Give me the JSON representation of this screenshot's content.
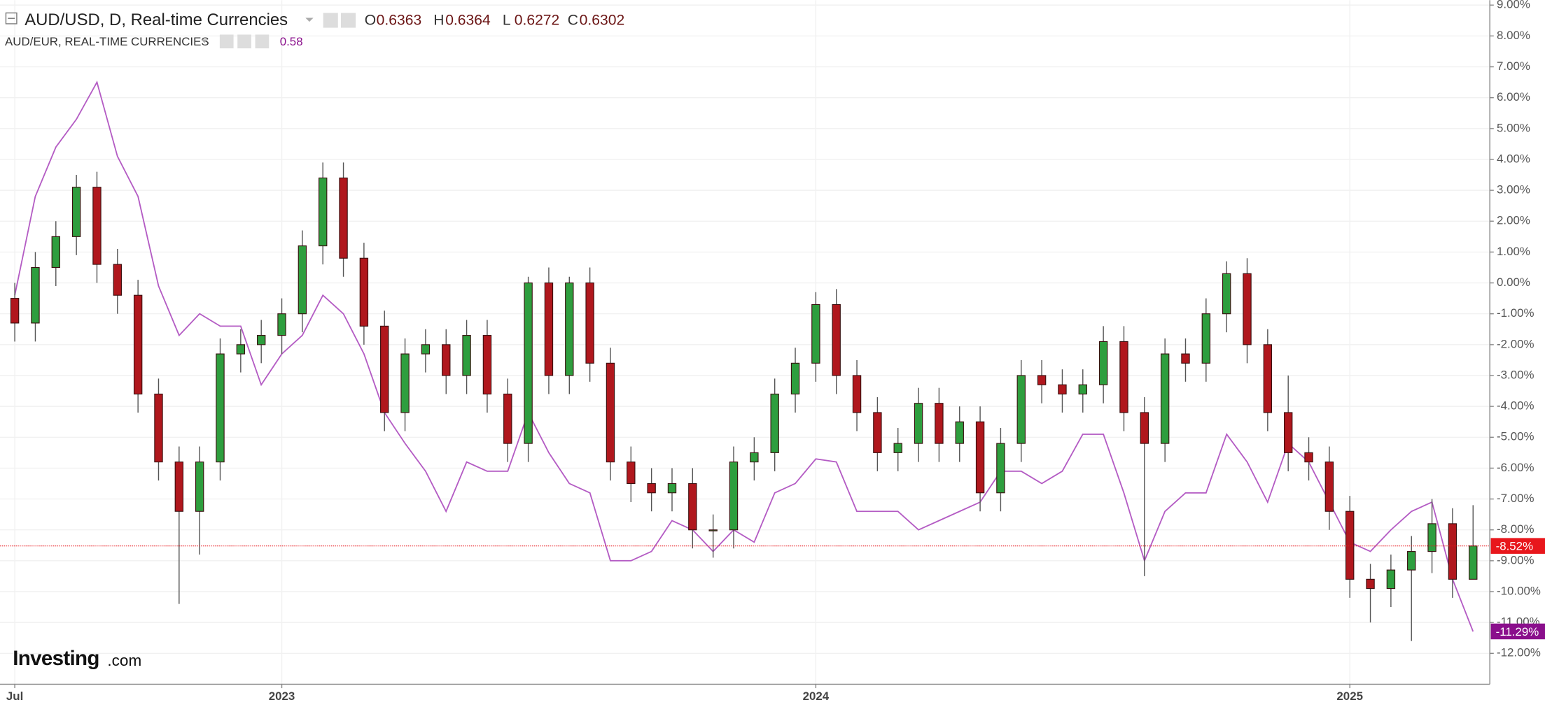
{
  "chart_data": {
    "type": "candlestick",
    "logo": "Investing",
    "logo_suffix": ".com",
    "ohlc_header": [
      {
        "label": "O",
        "value": 0.6363
      },
      {
        "label": "H",
        "value": 0.6364
      },
      {
        "label": "L",
        "value": 0.6272
      },
      {
        "label": "C",
        "value": 0.6302
      }
    ],
    "compare_value": 0.58,
    "categories": [
      "Jul",
      null,
      null,
      null,
      null,
      null,
      null,
      null,
      null,
      null,
      null,
      null,
      null,
      "2023",
      null,
      null,
      null,
      null,
      null,
      null,
      null,
      null,
      null,
      null,
      null,
      null,
      null,
      null,
      null,
      null,
      null,
      null,
      null,
      null,
      null,
      null,
      null,
      null,
      null,
      "2024",
      null,
      null,
      null,
      null,
      null,
      null,
      null,
      null,
      null,
      null,
      null,
      null,
      null,
      null,
      null,
      null,
      null,
      null,
      null,
      null,
      null,
      null,
      null,
      null,
      null,
      "2025",
      null,
      null,
      null,
      null,
      null,
      null
    ],
    "series": [
      {
        "name": "AUD/USD, D, Real-time Currencies",
        "up_color": "#2e9e3e",
        "down_color": "#b0171d",
        "outline_color": "#3a1010",
        "open": [
          -0.5,
          -1.3,
          0.5,
          1.5,
          3.1,
          0.6,
          -0.4,
          -3.6,
          -5.8,
          -7.4,
          -5.8,
          -2.3,
          -2,
          -1.7,
          -1,
          1.2,
          3.4,
          0.8,
          -1.4,
          -4.2,
          -2.3,
          -2,
          -3,
          -1.7,
          -3.6,
          -5.2,
          0,
          -3,
          0,
          -2.6,
          -5.8,
          -6.5,
          -6.8,
          -6.5,
          -8,
          -8,
          -5.8,
          -5.5,
          -3.6,
          -2.6,
          -0.7,
          -3,
          -4.2,
          -5.5,
          -5.2,
          -3.9,
          -5.2,
          -4.5,
          -6.8,
          -5.2,
          -3,
          -3.3,
          -3.6,
          -3.3,
          -1.9,
          -4.2,
          -5.2,
          -2.3,
          -2.6,
          -1,
          0.3,
          -2,
          -4.2,
          -5.5,
          -5.8,
          -7.4,
          -9.6,
          -9.9,
          -9.3,
          -8.7,
          -7.8,
          -9.6
        ],
        "high": [
          0,
          1,
          2,
          3.5,
          3.6,
          1.1,
          0.1,
          -3.1,
          -5.3,
          -5.3,
          -1.8,
          -1.5,
          -1.2,
          -0.5,
          1.7,
          3.9,
          3.9,
          1.3,
          -0.9,
          -1.8,
          -1.5,
          -1.5,
          -1.2,
          -1.2,
          -3.1,
          0.2,
          0.5,
          0.2,
          0.5,
          -2.1,
          -5.3,
          -6,
          -6,
          -6,
          -7.5,
          -5.3,
          -5,
          -3.1,
          -2.1,
          -0.3,
          -0.2,
          -2.5,
          -3.7,
          -4.7,
          -3.4,
          -3.4,
          -4,
          -4,
          -4.7,
          -2.5,
          -2.5,
          -2.8,
          -2.8,
          -1.4,
          -1.4,
          -3.7,
          -1.8,
          -1.8,
          -0.5,
          0.7,
          0.8,
          -1.5,
          -3,
          -5,
          -5.3,
          -6.9,
          -9.1,
          -8.8,
          -8.2,
          -7,
          -7.3,
          -7.2
        ],
        "low": [
          -1.9,
          -1.9,
          -0.1,
          0.9,
          0,
          -1,
          -4.2,
          -6.4,
          -10.4,
          -8.8,
          -6.4,
          -2.9,
          -2.6,
          -2.3,
          -1.6,
          0.6,
          0.2,
          -2,
          -4.8,
          -4.8,
          -2.9,
          -3.6,
          -3.6,
          -4.2,
          -5.8,
          -5.8,
          -3.6,
          -3.6,
          -3.2,
          -6.4,
          -7.1,
          -7.4,
          -7.4,
          -8.6,
          -8.9,
          -8.6,
          -6.4,
          -6.1,
          -4.2,
          -3.2,
          -3.6,
          -4.8,
          -6.1,
          -6.1,
          -5.8,
          -5.8,
          -5.8,
          -7.4,
          -7.4,
          -5.8,
          -3.9,
          -4.2,
          -4.2,
          -3.9,
          -4.8,
          -9.5,
          -5.8,
          -3.2,
          -3.2,
          -1.6,
          -2.6,
          -4.8,
          -6.1,
          -6.4,
          -8,
          -10.2,
          -11,
          -10.5,
          -11.6,
          -9.4,
          -10.2,
          -9.3
        ],
        "values": [
          -1.3,
          0.5,
          1.5,
          3.1,
          0.6,
          -0.4,
          -3.6,
          -5.8,
          -7.4,
          -5.8,
          -2.3,
          -2,
          -1.7,
          -1,
          1.2,
          3.4,
          0.8,
          -1.4,
          -4.2,
          -2.3,
          -2,
          -3,
          -1.7,
          -3.6,
          -5.2,
          0,
          -3,
          0,
          -2.6,
          -5.8,
          -6.5,
          -6.8,
          -6.5,
          -8,
          -8,
          -5.8,
          -5.5,
          -3.6,
          -2.6,
          -0.7,
          -3,
          -4.2,
          -5.5,
          -5.2,
          -3.9,
          -5.2,
          -4.5,
          -6.8,
          -5.2,
          -3,
          -3.3,
          -3.6,
          -3.3,
          -1.9,
          -4.2,
          -5.2,
          -2.3,
          -2.6,
          -1,
          0.3,
          -2,
          -4.2,
          -5.5,
          -5.8,
          -7.4,
          -9.6,
          -9.9,
          -9.3,
          -8.7,
          -7.8,
          -9.6,
          -8.52
        ],
        "value_labels": [
          null,
          null,
          null,
          null,
          null,
          null,
          null,
          null,
          null,
          null,
          null,
          null,
          null,
          null,
          null,
          null,
          null,
          null,
          null,
          null,
          null,
          null,
          null,
          null,
          null,
          null,
          null,
          null,
          null,
          null,
          null,
          null,
          null,
          null,
          null,
          null,
          null,
          null,
          null,
          null,
          null,
          null,
          null,
          null,
          null,
          null,
          null,
          null,
          null,
          null,
          null,
          null,
          null,
          null,
          null,
          null,
          null,
          null,
          null,
          null,
          null,
          null,
          null,
          null,
          null,
          null,
          null,
          null,
          null,
          null,
          null,
          "-8.52%"
        ],
        "badge_color": "#e8171c"
      },
      {
        "name": "AUD/EUR, REAL-TIME CURRENCIES",
        "type": "line",
        "color": "#b45cc4",
        "values": [
          -0.4,
          2.8,
          4.4,
          5.3,
          6.5,
          4.1,
          2.8,
          -0.1,
          -1.7,
          -1,
          -1.4,
          -1.4,
          -3.3,
          -2.3,
          -1.7,
          -0.4,
          -1,
          -2.3,
          -4.2,
          -5.2,
          -6.1,
          -7.4,
          -5.8,
          -6.1,
          -6.1,
          -4.2,
          -5.5,
          -6.5,
          -6.8,
          -9,
          -9,
          -8.7,
          -7.7,
          -8,
          -8.7,
          -8,
          -8.4,
          -6.8,
          -6.5,
          -5.7,
          -5.8,
          -7.4,
          -7.4,
          -7.4,
          -8,
          -7.7,
          -7.4,
          -7.1,
          -6.1,
          -6.1,
          -6.5,
          -6.1,
          -4.9,
          -4.9,
          -6.8,
          -9,
          -7.4,
          -6.8,
          -6.8,
          -4.9,
          -5.8,
          -7.1,
          -5.2,
          -5.8,
          -7.1,
          -8.4,
          -8.7,
          -8,
          -7.4,
          -7.1,
          -9.6,
          -11.29
        ],
        "value_labels": [
          null,
          null,
          null,
          null,
          null,
          null,
          null,
          null,
          null,
          null,
          null,
          null,
          null,
          null,
          null,
          null,
          null,
          null,
          null,
          null,
          null,
          null,
          null,
          null,
          null,
          null,
          null,
          null,
          null,
          null,
          null,
          null,
          null,
          null,
          null,
          null,
          null,
          null,
          null,
          null,
          null,
          null,
          null,
          null,
          null,
          null,
          null,
          null,
          null,
          null,
          null,
          null,
          null,
          null,
          null,
          null,
          null,
          null,
          null,
          null,
          null,
          null,
          null,
          null,
          null,
          null,
          null,
          null,
          null,
          null,
          null,
          "-11.29%"
        ],
        "badge_color": "#8a0f8c"
      }
    ],
    "ylim": [
      -13,
      9.16
    ],
    "yticks": [
      {
        "value": 9,
        "label": "9.00%"
      },
      {
        "value": 8,
        "label": "8.00%"
      },
      {
        "value": 7,
        "label": "7.00%"
      },
      {
        "value": 6,
        "label": "6.00%"
      },
      {
        "value": 5,
        "label": "5.00%"
      },
      {
        "value": 4,
        "label": "4.00%"
      },
      {
        "value": 3,
        "label": "3.00%"
      },
      {
        "value": 2,
        "label": "2.00%"
      },
      {
        "value": 1,
        "label": "1.00%"
      },
      {
        "value": 0,
        "label": "0.00%"
      },
      {
        "value": -1,
        "label": "-1.00%"
      },
      {
        "value": -2,
        "label": "-2.00%"
      },
      {
        "value": -3,
        "label": "-3.00%"
      },
      {
        "value": -4,
        "label": "-4.00%"
      },
      {
        "value": -5,
        "label": "-5.00%"
      },
      {
        "value": -6,
        "label": "-6.00%"
      },
      {
        "value": -7,
        "label": "-7.00%"
      },
      {
        "value": -8,
        "label": "-8.00%"
      },
      {
        "value": -9,
        "label": "-9.00%"
      },
      {
        "value": -10,
        "label": "-10.00%"
      },
      {
        "value": -11,
        "label": "-11.00%"
      },
      {
        "value": -12,
        "label": "-12.00%"
      }
    ],
    "grid": true
  }
}
